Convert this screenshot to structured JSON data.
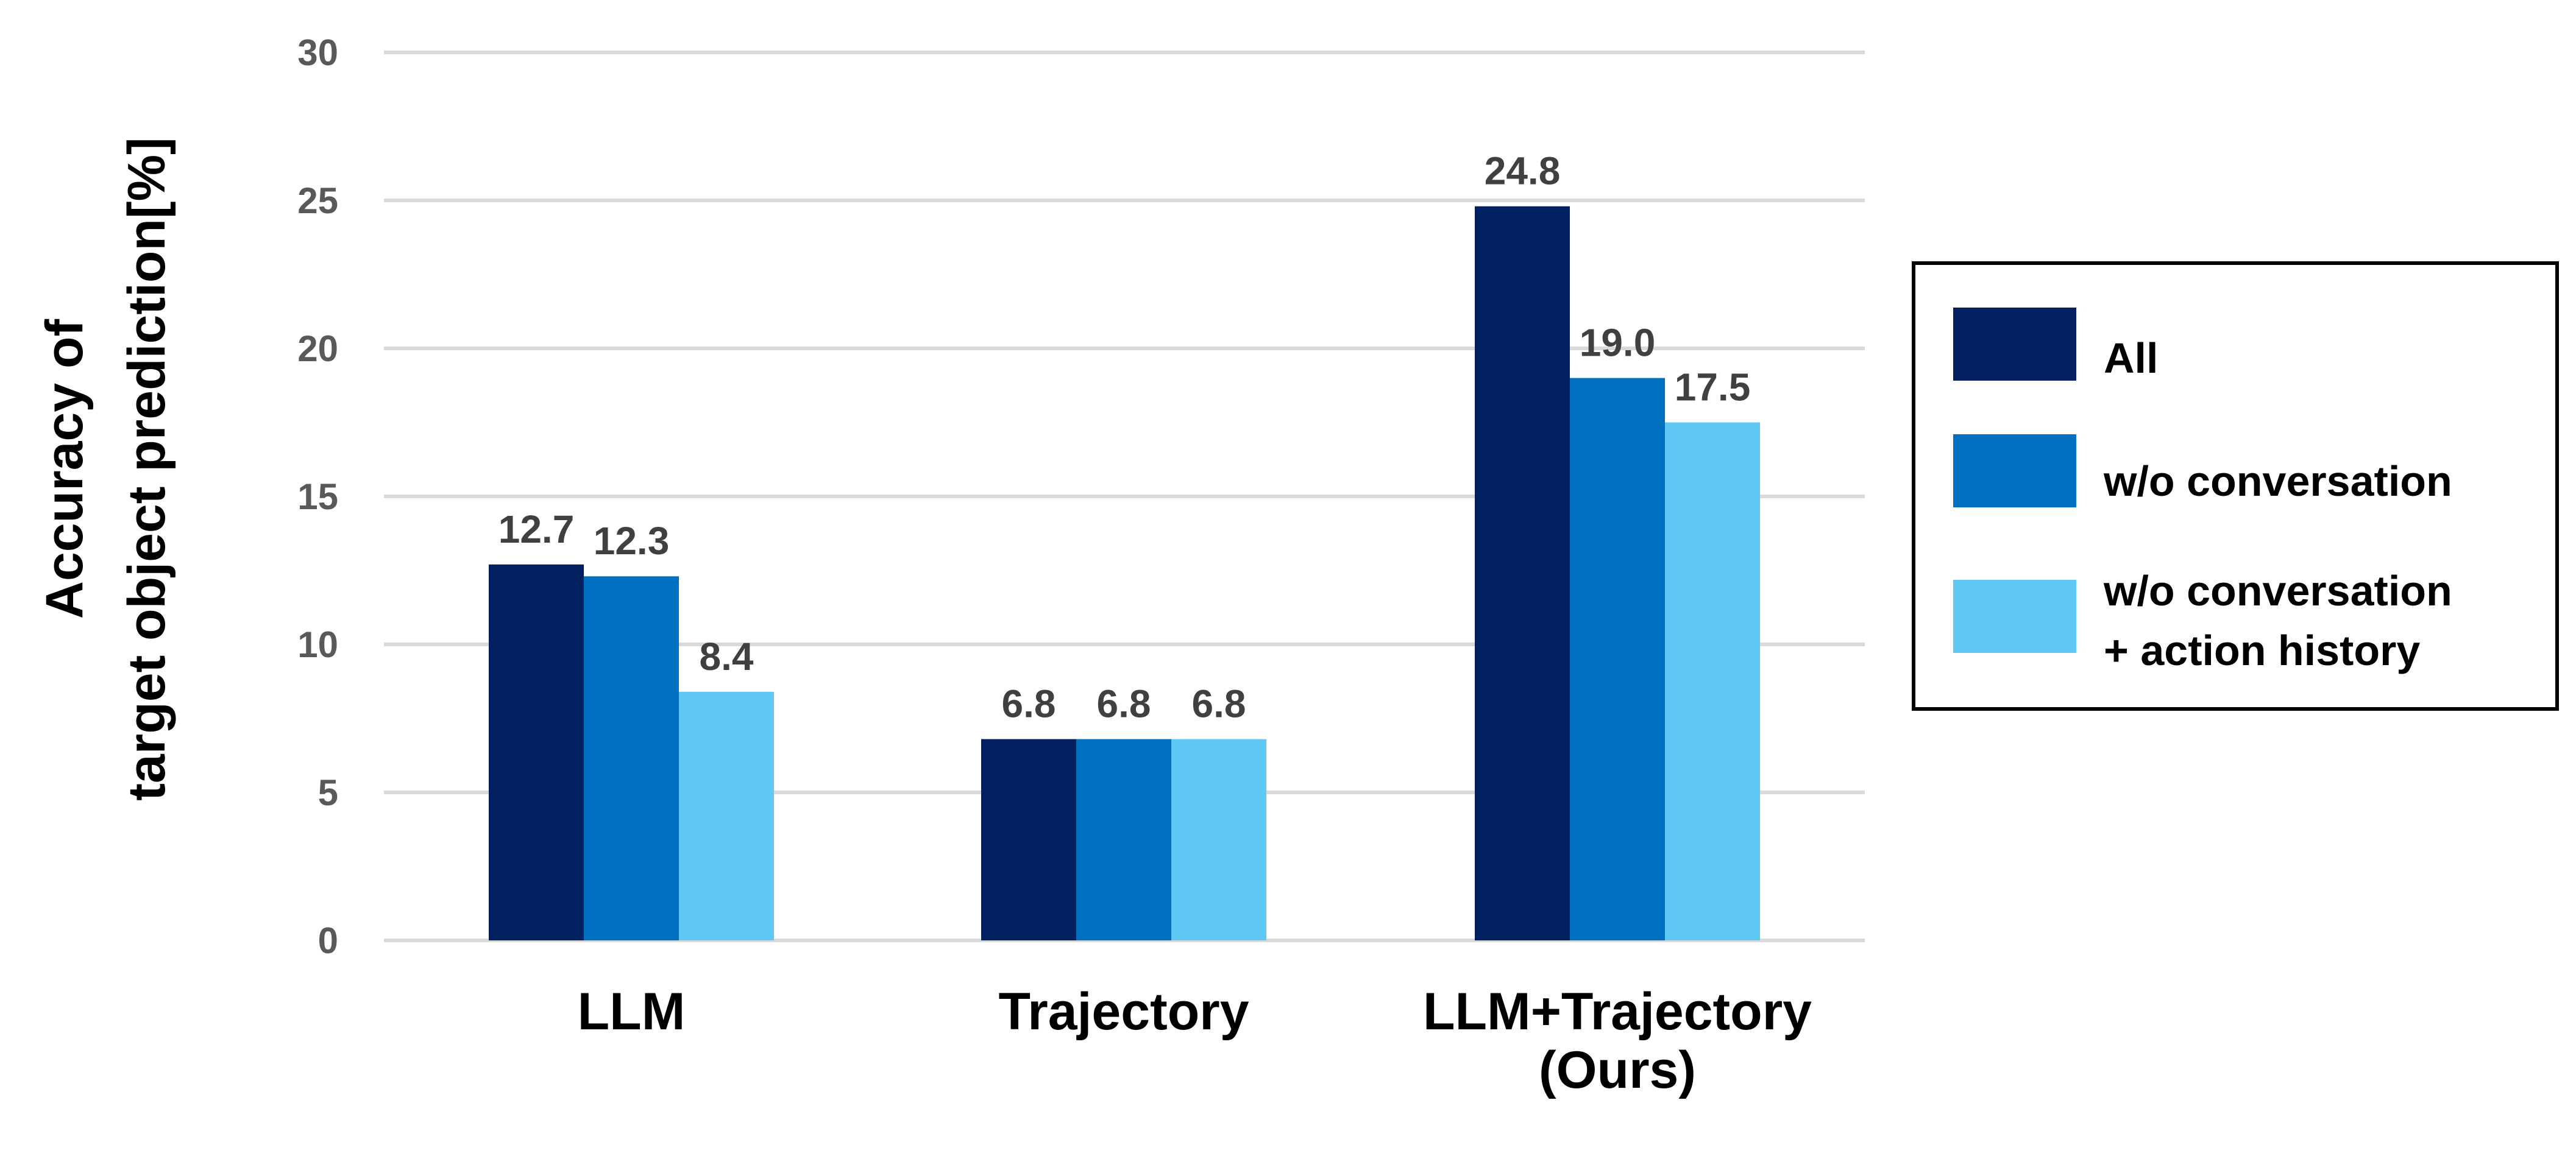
{
  "chart_data": {
    "type": "bar",
    "categories": [
      [
        "LLM"
      ],
      [
        "Trajectory"
      ],
      [
        "LLM+Trajectory",
        "(Ours)"
      ]
    ],
    "series": [
      {
        "name": "All",
        "values": [
          12.7,
          6.8,
          24.8
        ],
        "color": "#002060"
      },
      {
        "name": "w/o conversation",
        "values": [
          12.3,
          6.8,
          19.0
        ],
        "color": "#0070C0"
      },
      {
        "name": "w/o conversation\n+ action history",
        "values": [
          8.4,
          6.8,
          17.5
        ],
        "color": "#5FC9F3"
      }
    ],
    "ylabel": [
      "Accuracy of",
      "target object prediction[%]"
    ],
    "ylim": [
      0,
      30
    ],
    "yticks": [
      0,
      5,
      10,
      15,
      20,
      25,
      30
    ],
    "grid": true,
    "legend_position": "right",
    "data_labels": [
      "12.7",
      "12.3",
      "8.4",
      "6.8",
      "6.8",
      "6.8",
      "24.8",
      "19.0",
      "17.5"
    ]
  }
}
